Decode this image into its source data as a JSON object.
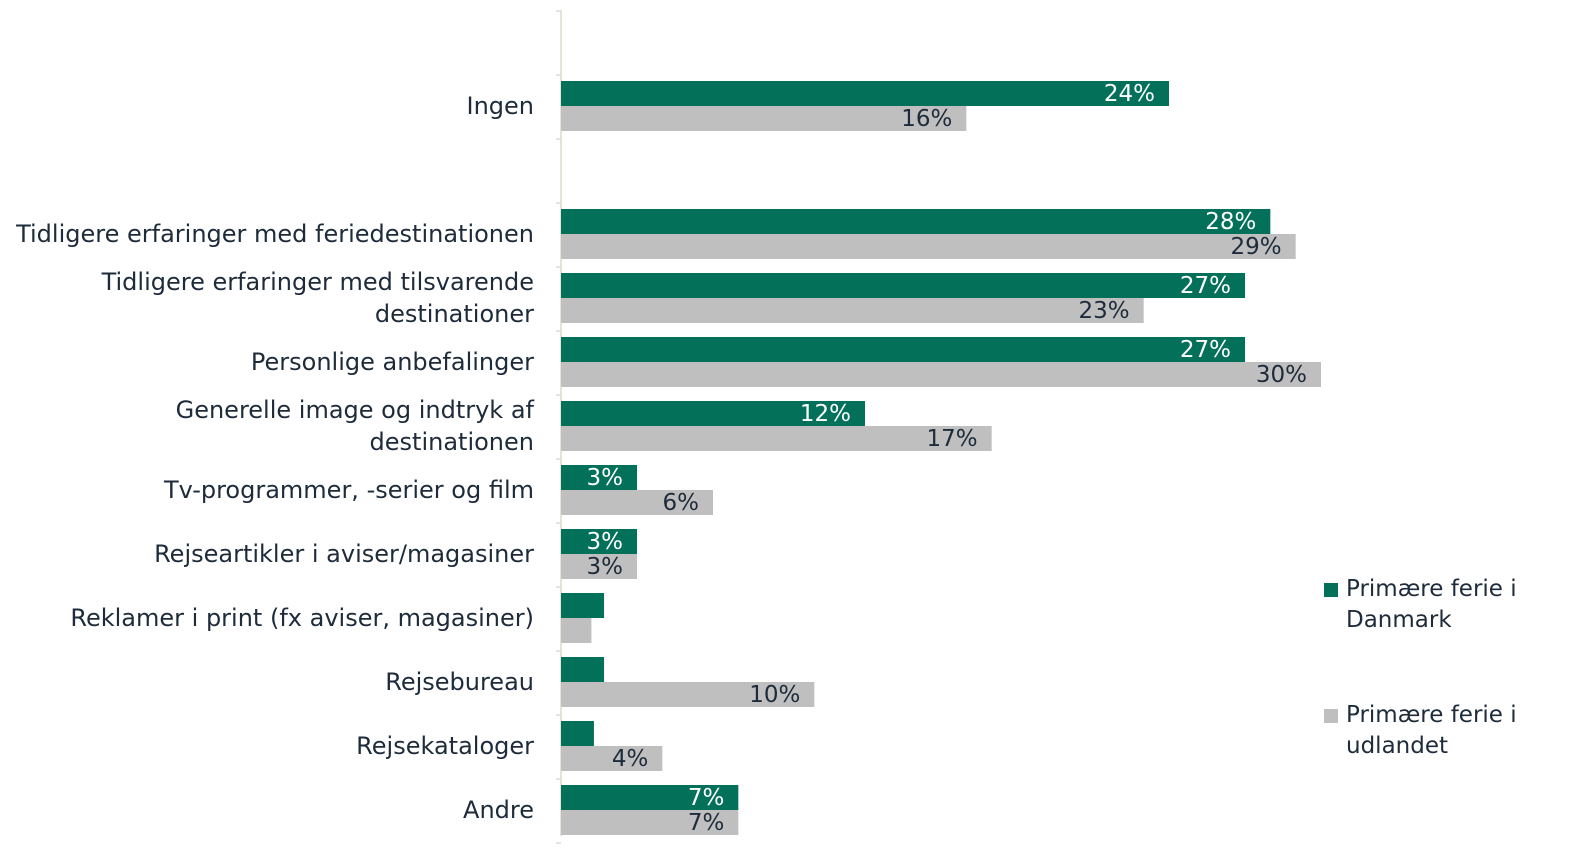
{
  "chart_data": {
    "type": "hbar",
    "categories": [
      null,
      "Ingen",
      null,
      "Tidligere erfaringer med feriedestinationen",
      "Tidligere erfaringer med tilsvarende destinationer",
      "Personlige anbefalinger",
      "Generelle image og indtryk af destinationen",
      "Tv-programmer, -serier og film",
      "Rejseartikler i aviser/magasiner",
      "Reklamer i print (fx aviser, magasiner)",
      "Rejsebureau",
      "Rejsekataloger",
      "Andre"
    ],
    "series": [
      {
        "name": "Primære ferie i Danmark",
        "color": "#03705a",
        "values": [
          null,
          24,
          null,
          28,
          27,
          27,
          12,
          3,
          3,
          1.7,
          1.7,
          1.3,
          7
        ],
        "value_labels": [
          null,
          "24%",
          null,
          "28%",
          "27%",
          "27%",
          "12%",
          "3%",
          "3%",
          null,
          null,
          null,
          "7%"
        ]
      },
      {
        "name": "Primære ferie i udlandet",
        "color": "#bfbfbf",
        "values": [
          null,
          16,
          null,
          29,
          23,
          30,
          17,
          6,
          3,
          1.2,
          10,
          4,
          7
        ],
        "value_labels": [
          null,
          "16%",
          null,
          "29%",
          "23%",
          "30%",
          "17%",
          "6%",
          "3%",
          null,
          "10%",
          "4%",
          "7%"
        ]
      }
    ],
    "xlim": [
      0,
      30
    ],
    "legend": "right"
  }
}
